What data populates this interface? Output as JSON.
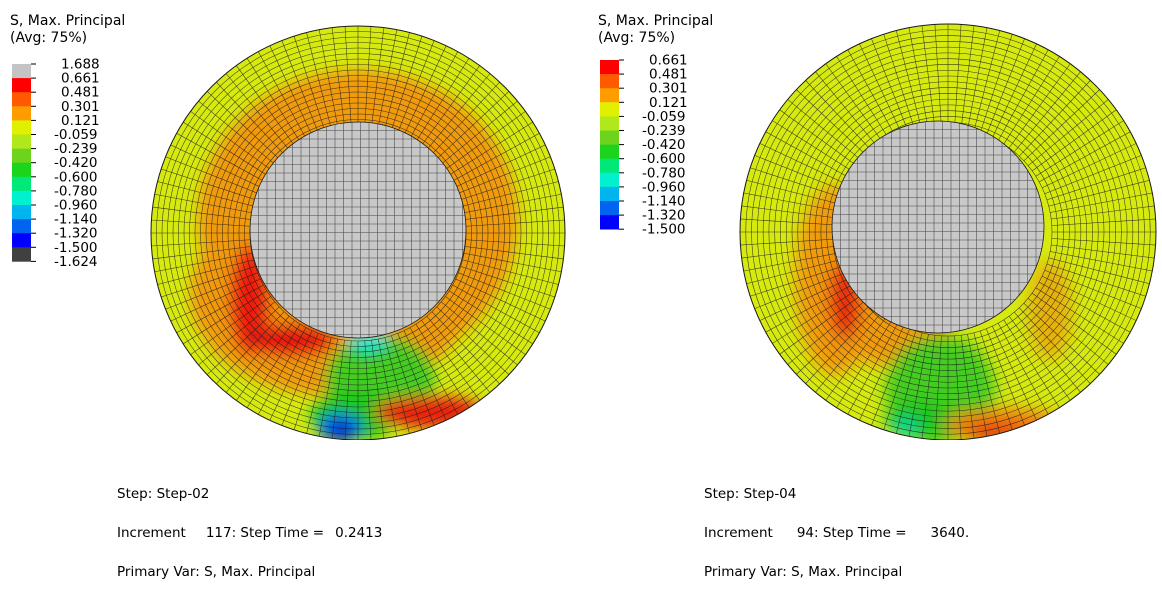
{
  "colors": {
    "background": "#ffffff",
    "mesh_line": "#1a1a1a",
    "core": "#c8c8c8"
  },
  "panels": [
    {
      "legend": {
        "title_line1": "S, Max. Principal",
        "title_line2": "(Avg: 75%)",
        "levels": [
          "1.688",
          "0.661",
          "0.481",
          "0.301",
          "0.121",
          "-0.059",
          "-0.239",
          "-0.420",
          "-0.600",
          "-0.780",
          "-0.960",
          "-1.140",
          "-1.320",
          "-1.500",
          "-1.624"
        ],
        "colors": [
          "#c4c4c4",
          "#ff0000",
          "#ff5a00",
          "#ff9c00",
          "#e0f000",
          "#b0e81c",
          "#6cd41c",
          "#1cd41c",
          "#00e878",
          "#00f0d0",
          "#00b4f0",
          "#0064f0",
          "#0000ff",
          "#404040"
        ]
      },
      "info": {
        "step": "Step: Step-02",
        "increment_label": "Increment",
        "increment_value": "117: Step Time =",
        "step_time": "0.2413",
        "primary_var": "Primary Var: S, Max. Principal"
      }
    },
    {
      "legend": {
        "title_line1": "S, Max. Principal",
        "title_line2": "(Avg: 75%)",
        "levels": [
          "0.661",
          "0.481",
          "0.301",
          "0.121",
          "-0.059",
          "-0.239",
          "-0.420",
          "-0.600",
          "-0.780",
          "-0.960",
          "-1.140",
          "-1.320",
          "-1.500"
        ],
        "colors": [
          "#ff0000",
          "#ff5a00",
          "#ff9c00",
          "#e0f000",
          "#b0e81c",
          "#6cd41c",
          "#1cd41c",
          "#00e878",
          "#00f0d0",
          "#00b4f0",
          "#0064f0",
          "#0000ff"
        ]
      },
      "info": {
        "step": "Step: Step-04",
        "increment_label": "Increment",
        "increment_value": "94: Step Time =",
        "step_time": "3640.",
        "primary_var": "Primary Var: S, Max. Principal"
      }
    }
  ]
}
